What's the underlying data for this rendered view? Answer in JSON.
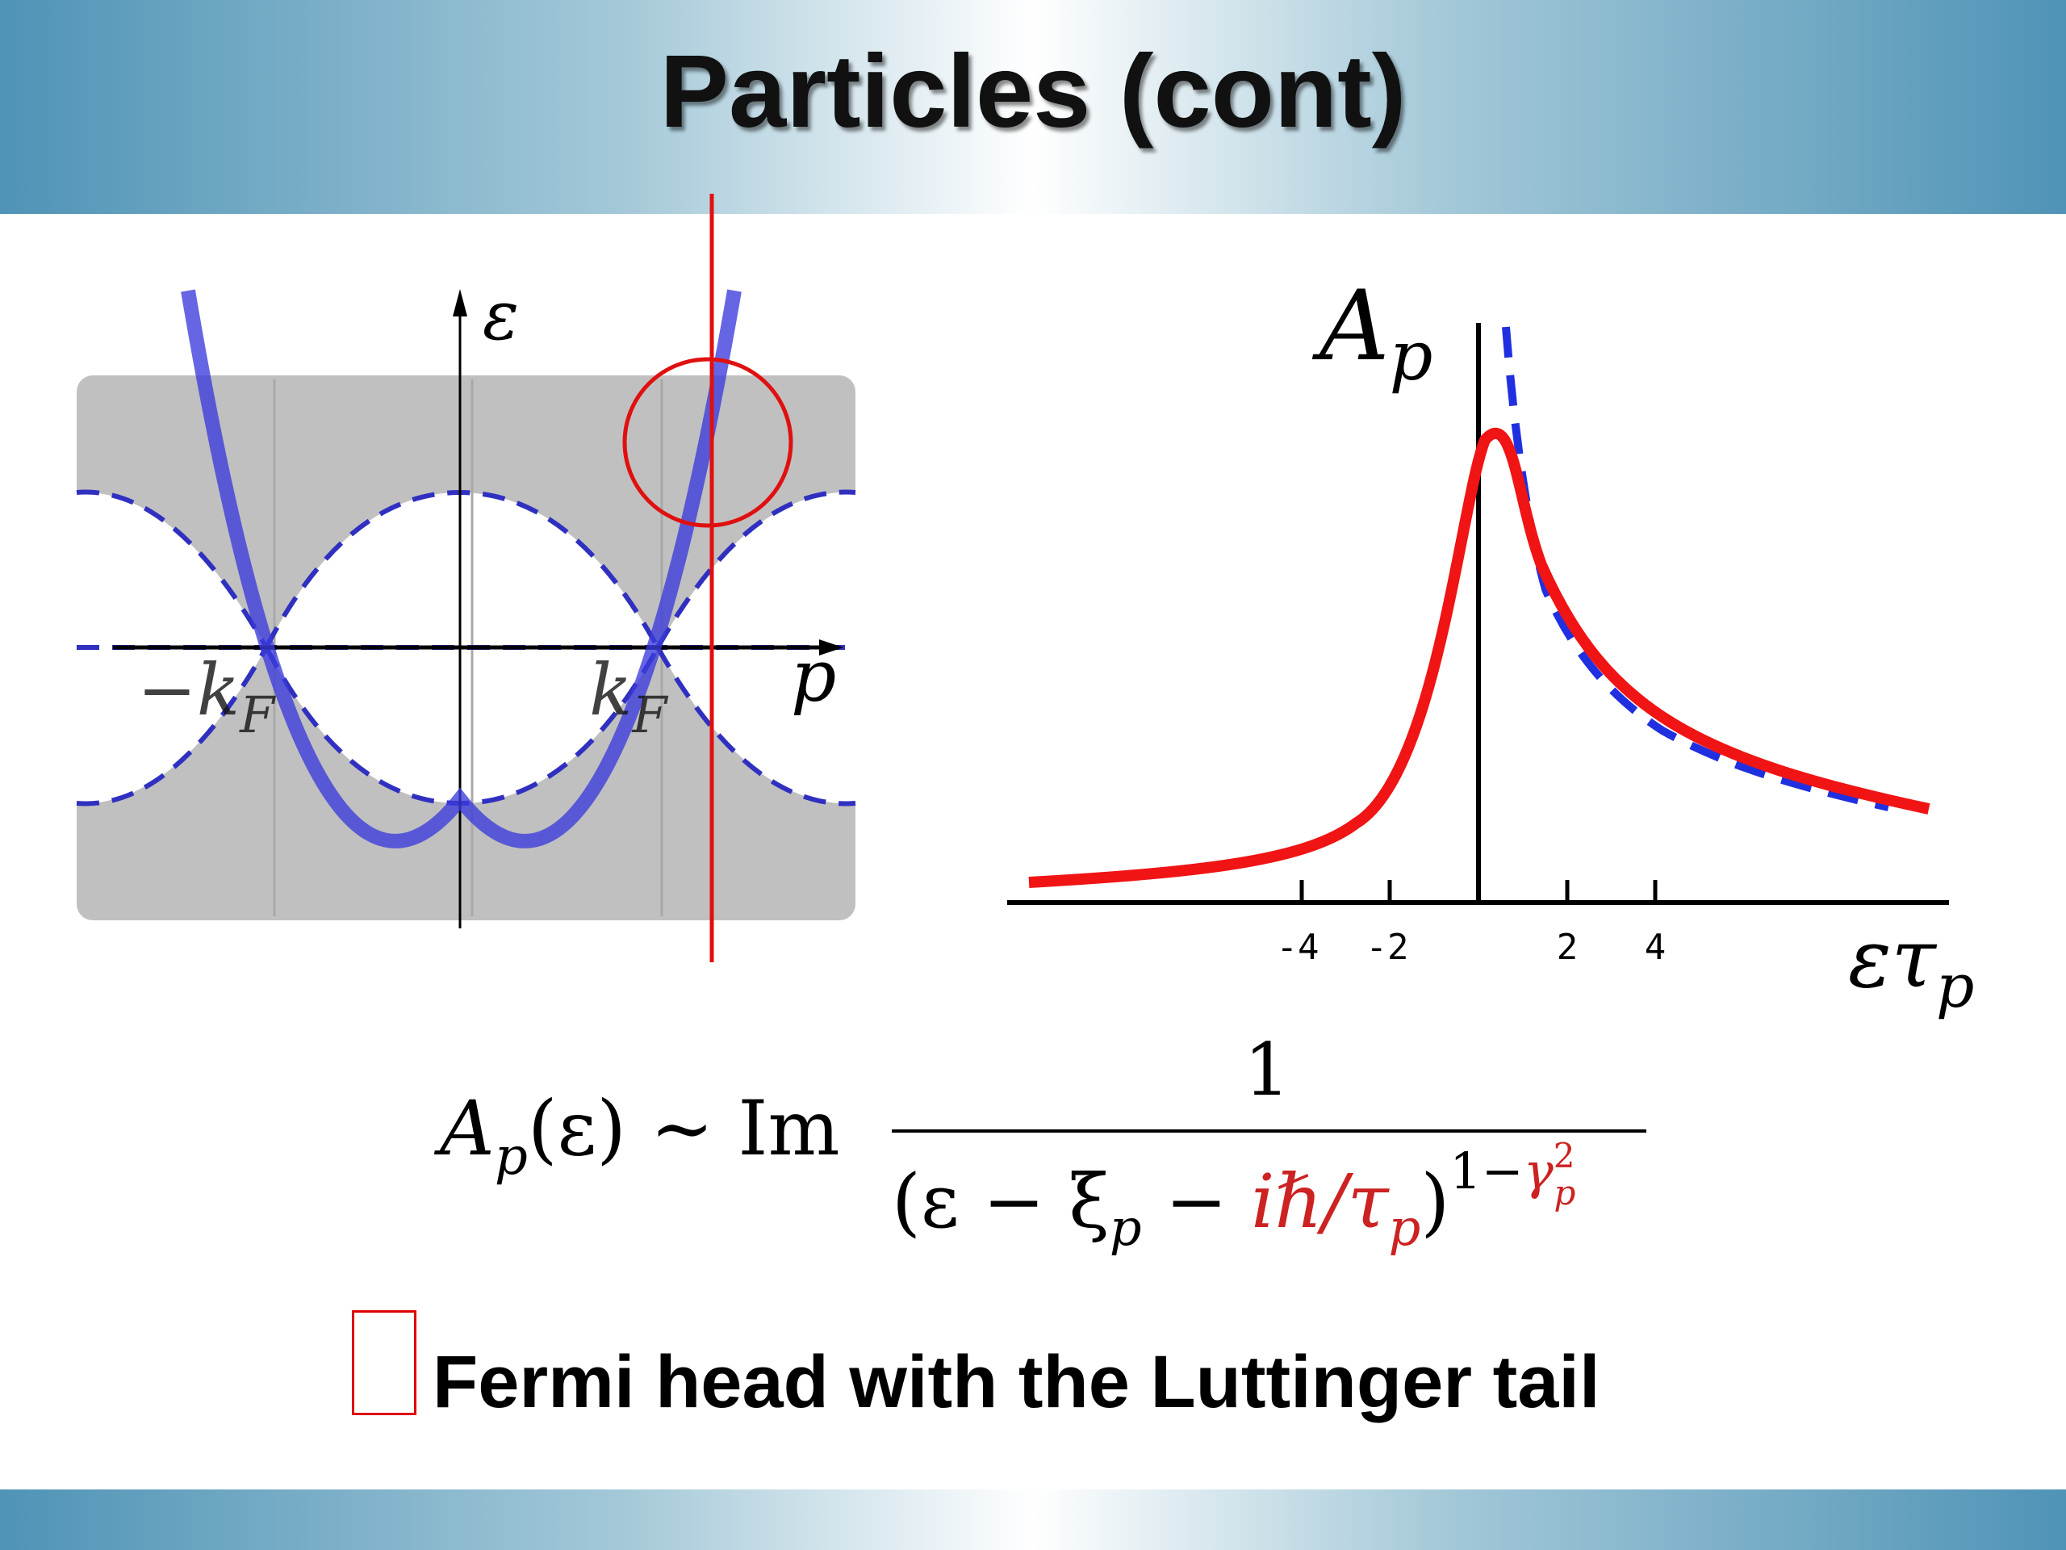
{
  "slide": {
    "title": "Particles (cont)",
    "bullet_text": "Fermi head with the Luttinger tail"
  },
  "left_diagram": {
    "y_axis_label": "ε",
    "x_axis_label": "p",
    "minus_kf_label": "−k",
    "kf_label": "k",
    "subscript": "F",
    "colors": {
      "band": "#c0c0c0",
      "parabola": "#3b3bdc",
      "marker": "#e01010"
    }
  },
  "right_chart": {
    "y_label_main": "A",
    "y_label_sub": "p",
    "x_label_main": "ετ",
    "x_label_sub": "p",
    "ticks": [
      "-4",
      "-2",
      "2",
      "4"
    ],
    "colors": {
      "solid": "#f01414",
      "dashed": "#2030e0"
    }
  },
  "formula": {
    "lhs_a": "A",
    "lhs_sub": "p",
    "lhs_rest": "(ε) ∼ Im",
    "numerator": "1",
    "denom_open": "(ε − ξ",
    "denom_sub": "p",
    "denom_minus": " − ",
    "denom_red": "iℏ/τ",
    "denom_red_sub": "p",
    "denom_close": ")",
    "exp_black": "1−",
    "exp_red": "γ",
    "exp_red_sup": "2",
    "exp_red_sub": "p",
    "red_color": "#cc2222"
  }
}
